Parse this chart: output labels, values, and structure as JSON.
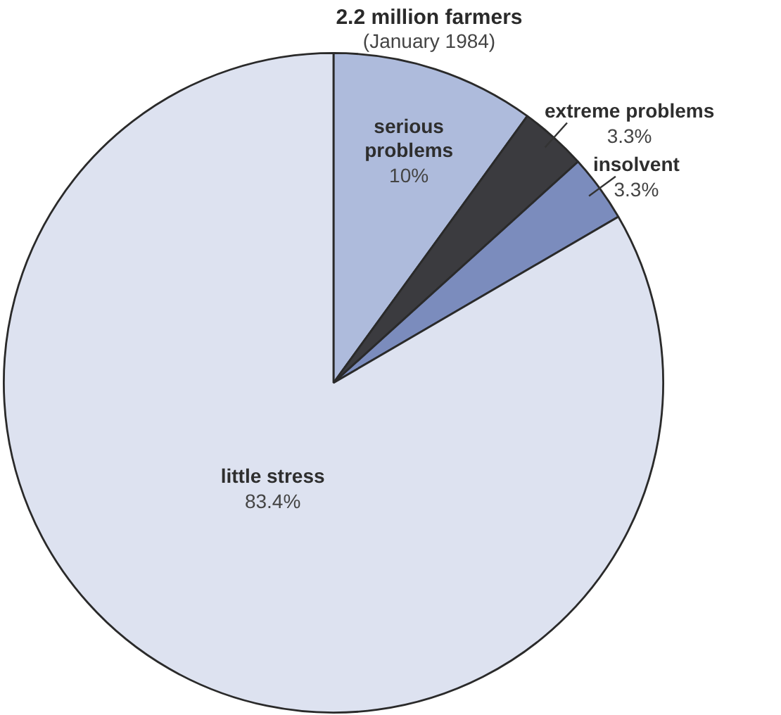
{
  "chart_data": {
    "type": "pie",
    "title": "2.2 million farmers",
    "subtitle": "(January 1984)",
    "categories": [
      "serious problems",
      "extreme problems",
      "insolvent",
      "little stress"
    ],
    "values": [
      10,
      3.3,
      3.3,
      83.4
    ],
    "colors": [
      "#aebbdc",
      "#3b3b3f",
      "#7b8cbd",
      "#dde2f0"
    ],
    "value_labels": [
      "10%",
      "3.3%",
      "3.3%",
      "83.4%"
    ]
  }
}
